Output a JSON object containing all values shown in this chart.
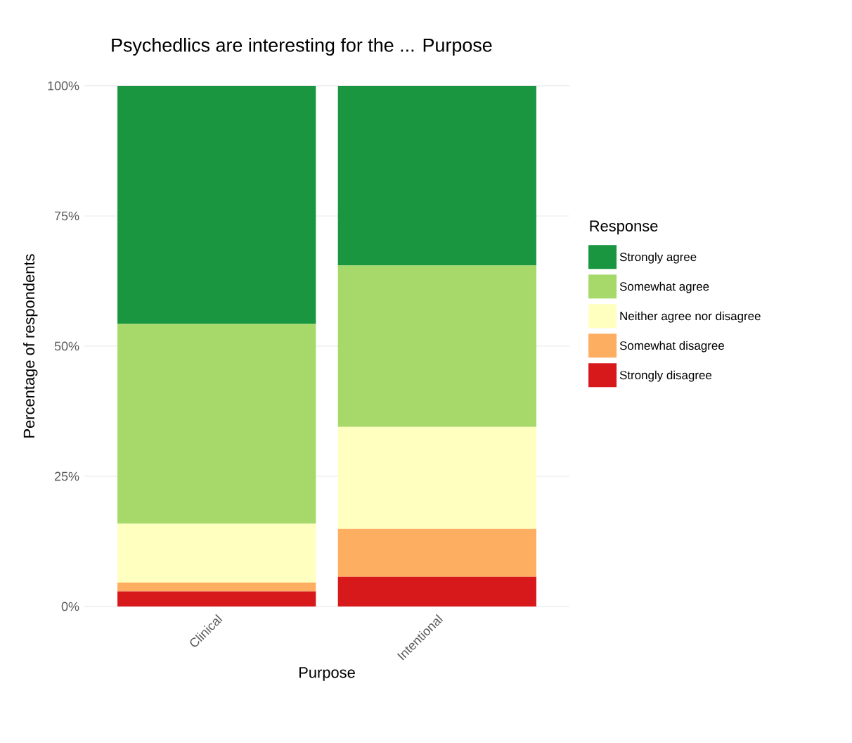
{
  "chart_data": {
    "type": "bar",
    "title": "Psychedlics are interesting for the ... Purpose",
    "xlabel": "Purpose",
    "ylabel": "Percentage of respondents",
    "legend_title": "Response",
    "categories": [
      "Clinical",
      "Intentional"
    ],
    "stacked": true,
    "series": [
      {
        "name": "Strongly disagree",
        "color": "#d7191c",
        "values": [
          2.9,
          5.7
        ]
      },
      {
        "name": "Somewhat disagree",
        "color": "#fdae61",
        "values": [
          1.7,
          9.2
        ]
      },
      {
        "name": "Neither agree nor disagree",
        "color": "#ffffbf",
        "values": [
          11.3,
          19.6
        ]
      },
      {
        "name": "Somewhat agree",
        "color": "#a6d96a",
        "values": [
          38.4,
          31.0
        ]
      },
      {
        "name": "Strongly agree",
        "color": "#1a9641",
        "values": [
          45.7,
          34.5
        ]
      }
    ],
    "ylim": [
      0,
      100
    ],
    "yticks": [
      {
        "value": 0,
        "label": "0%"
      },
      {
        "value": 25,
        "label": "25%"
      },
      {
        "value": 50,
        "label": "50%"
      },
      {
        "value": 75,
        "label": "75%"
      },
      {
        "value": 100,
        "label": "100%"
      }
    ],
    "grid": true,
    "legend": "right"
  }
}
